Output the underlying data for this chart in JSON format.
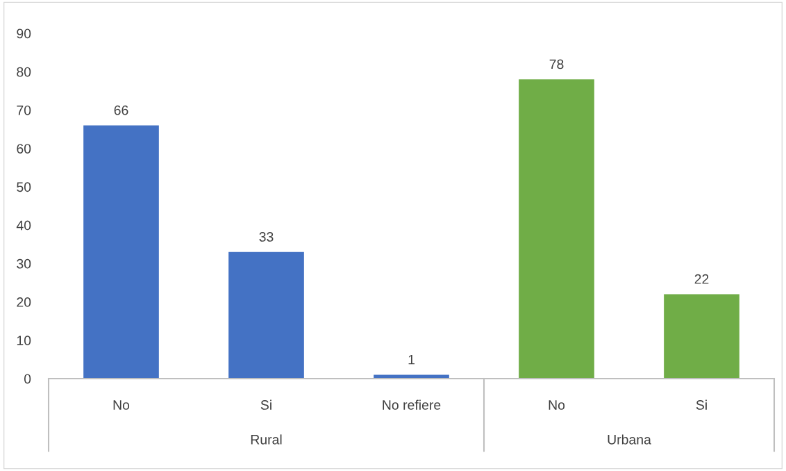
{
  "chart_data": {
    "type": "bar",
    "categories": [
      "No",
      "Si",
      "No refiere",
      "No",
      "Si"
    ],
    "values": [
      66,
      33,
      1,
      78,
      22
    ],
    "colors": [
      "#4472c4",
      "#4472c4",
      "#4472c4",
      "#70ad47",
      "#70ad47"
    ],
    "ylim": [
      0,
      90
    ],
    "yticks": [
      0,
      10,
      20,
      30,
      40,
      50,
      60,
      70,
      80,
      90
    ],
    "data_labels": true,
    "grid": false,
    "annotations": [
      "Rural",
      "Urbana"
    ]
  }
}
